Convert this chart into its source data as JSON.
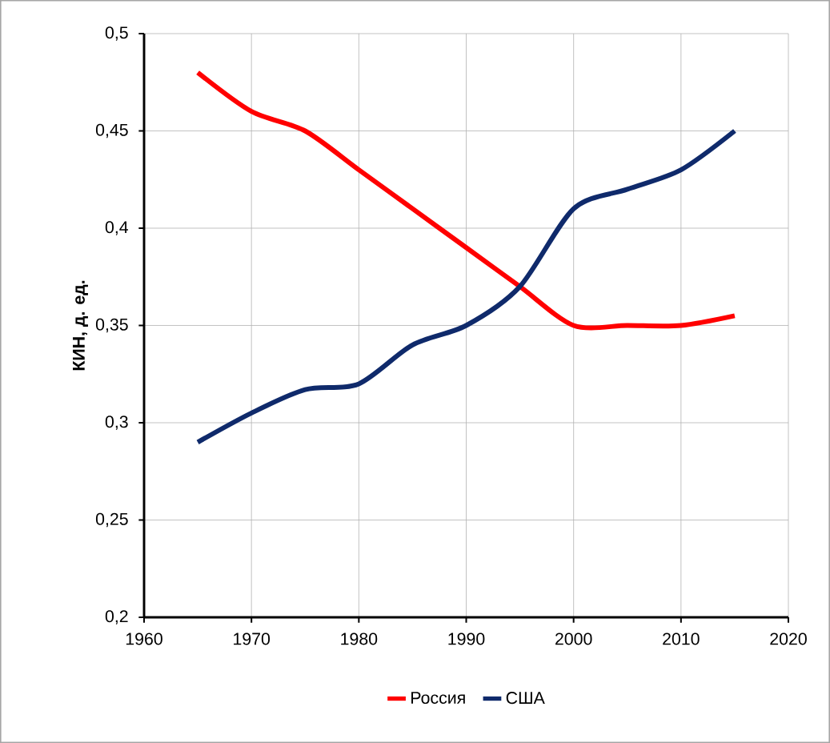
{
  "chart_data": {
    "type": "line",
    "ylabel": "КИН, д. ед.",
    "x": [
      1965,
      1970,
      1975,
      1980,
      1985,
      1990,
      1995,
      2000,
      2005,
      2010,
      2015
    ],
    "series": [
      {
        "name": "Россия",
        "color": "#ff0000",
        "values": [
          0.48,
          0.46,
          0.45,
          0.43,
          0.41,
          0.39,
          0.37,
          0.35,
          0.35,
          0.35,
          0.355
        ]
      },
      {
        "name": "США",
        "color": "#0f2a6b",
        "values": [
          0.29,
          0.305,
          0.317,
          0.32,
          0.34,
          0.35,
          0.37,
          0.41,
          0.42,
          0.43,
          0.45
        ]
      }
    ],
    "xlim": [
      1960,
      2020
    ],
    "xticks": [
      1960,
      1970,
      1980,
      1990,
      2000,
      2010,
      2020
    ],
    "ylim": [
      0.2,
      0.5
    ],
    "yticks": [
      {
        "value": 0.2,
        "label": "0,2"
      },
      {
        "value": 0.25,
        "label": "0,25"
      },
      {
        "value": 0.3,
        "label": "0,3"
      },
      {
        "value": 0.35,
        "label": "0,35"
      },
      {
        "value": 0.4,
        "label": "0,4"
      },
      {
        "value": 0.45,
        "label": "0,45"
      },
      {
        "value": 0.5,
        "label": "0,5"
      }
    ],
    "grid": true,
    "legend": "bottom",
    "marker": "none",
    "line_style": "solid"
  }
}
